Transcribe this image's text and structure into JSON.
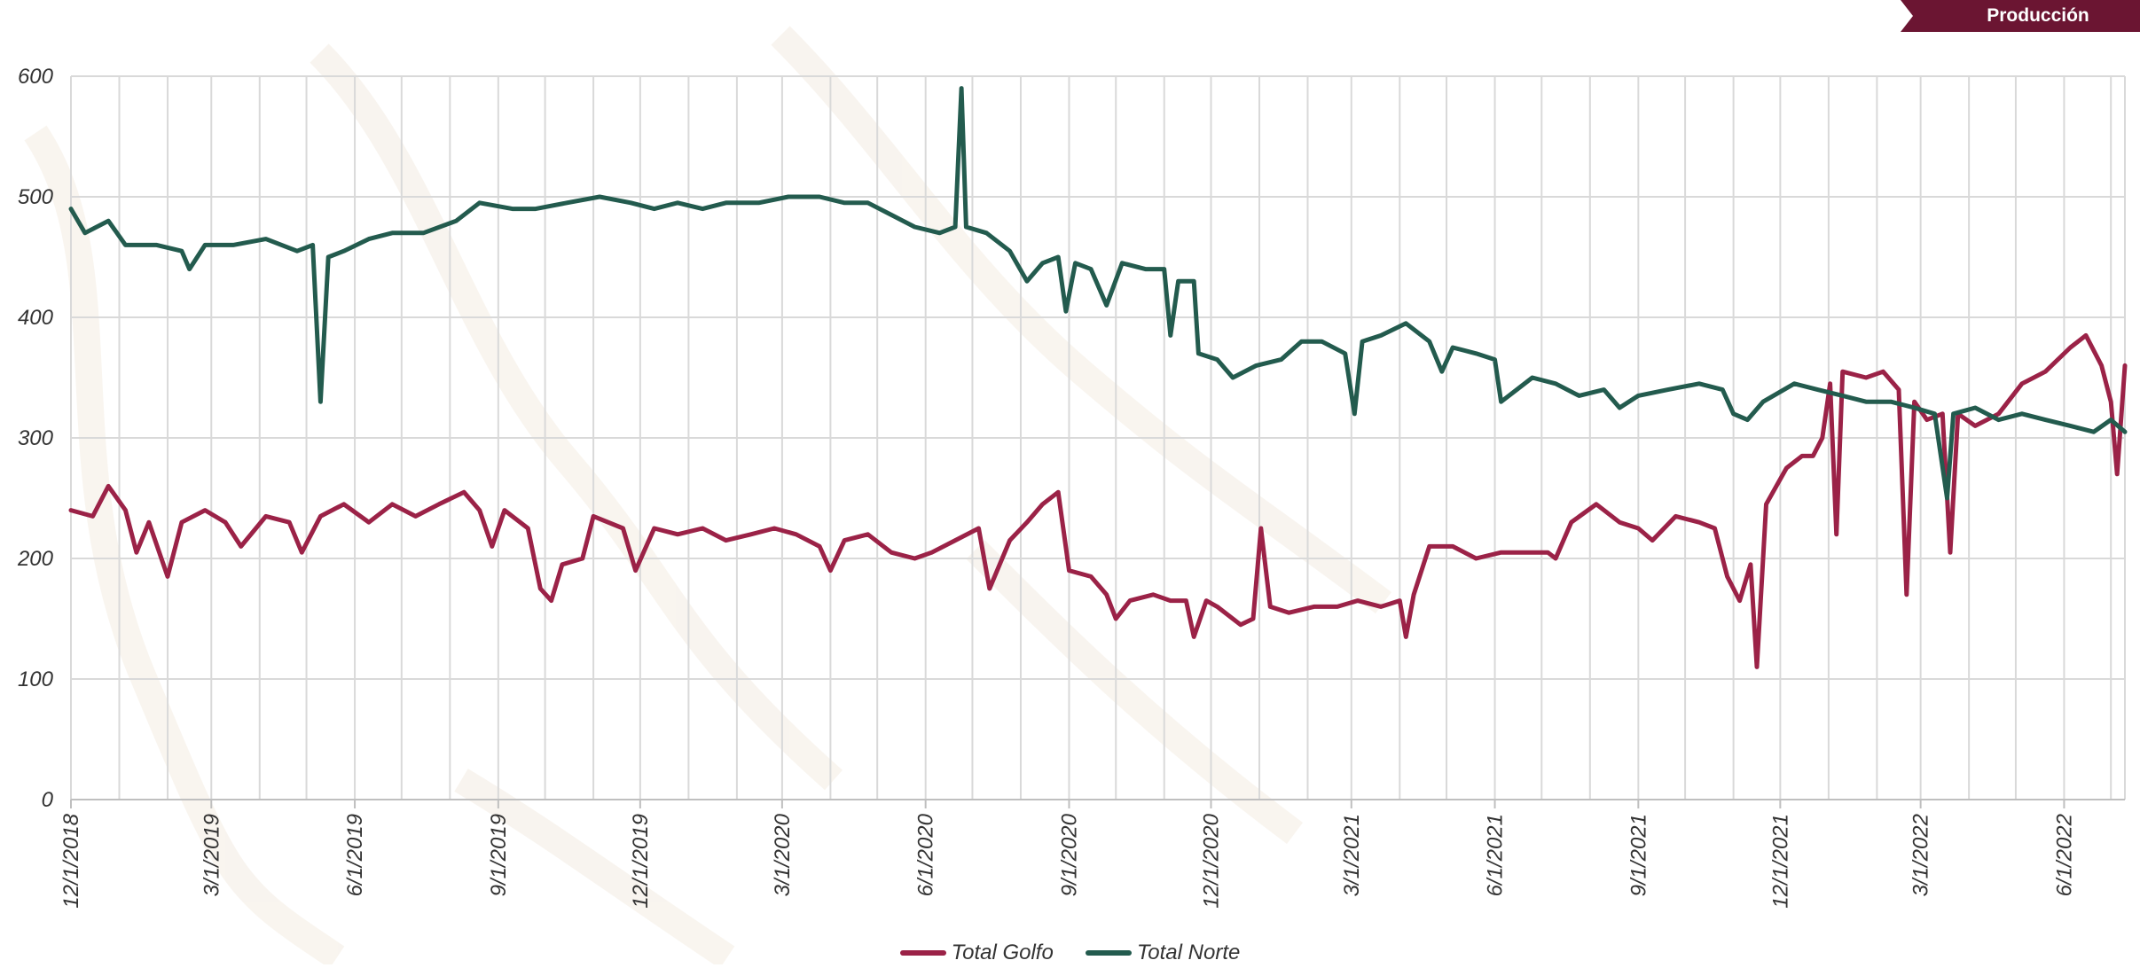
{
  "header": {
    "badge_label": "Producción"
  },
  "chart_data": {
    "type": "line",
    "title": "",
    "xlabel": "",
    "ylabel": "",
    "ylim": [
      0,
      600
    ],
    "y_ticks": [
      0,
      100,
      200,
      300,
      400,
      500,
      600
    ],
    "x_tick_labels": [
      "12/1/2018",
      "3/1/2019",
      "6/1/2019",
      "9/1/2019",
      "12/1/2019",
      "3/1/2020",
      "6/1/2020",
      "9/1/2020",
      "12/1/2020",
      "3/1/2021",
      "6/1/2021",
      "9/1/2021",
      "12/1/2021",
      "3/1/2022",
      "6/1/2022"
    ],
    "x_range": [
      "2018-12-01",
      "2022-07-10"
    ],
    "grid": true,
    "legend_position": "bottom-center",
    "series": [
      {
        "name": "Total Golfo",
        "color": "#9b2247",
        "points": [
          [
            "2018-12-01",
            240
          ],
          [
            "2018-12-15",
            235
          ],
          [
            "2018-12-25",
            260
          ],
          [
            "2019-01-05",
            240
          ],
          [
            "2019-01-12",
            205
          ],
          [
            "2019-01-20",
            230
          ],
          [
            "2019-02-01",
            185
          ],
          [
            "2019-02-10",
            230
          ],
          [
            "2019-02-25",
            240
          ],
          [
            "2019-03-10",
            230
          ],
          [
            "2019-03-20",
            210
          ],
          [
            "2019-04-05",
            235
          ],
          [
            "2019-04-20",
            230
          ],
          [
            "2019-04-28",
            205
          ],
          [
            "2019-05-10",
            235
          ],
          [
            "2019-05-25",
            245
          ],
          [
            "2019-06-10",
            230
          ],
          [
            "2019-06-25",
            245
          ],
          [
            "2019-07-10",
            235
          ],
          [
            "2019-07-25",
            245
          ],
          [
            "2019-08-10",
            255
          ],
          [
            "2019-08-20",
            240
          ],
          [
            "2019-08-28",
            210
          ],
          [
            "2019-09-05",
            240
          ],
          [
            "2019-09-20",
            225
          ],
          [
            "2019-09-28",
            175
          ],
          [
            "2019-10-05",
            165
          ],
          [
            "2019-10-12",
            195
          ],
          [
            "2019-10-25",
            200
          ],
          [
            "2019-11-01",
            235
          ],
          [
            "2019-11-20",
            225
          ],
          [
            "2019-11-28",
            190
          ],
          [
            "2019-12-10",
            225
          ],
          [
            "2019-12-25",
            220
          ],
          [
            "2020-01-10",
            225
          ],
          [
            "2020-01-25",
            215
          ],
          [
            "2020-02-10",
            220
          ],
          [
            "2020-02-25",
            225
          ],
          [
            "2020-03-10",
            220
          ],
          [
            "2020-03-25",
            210
          ],
          [
            "2020-04-01",
            190
          ],
          [
            "2020-04-10",
            215
          ],
          [
            "2020-04-25",
            220
          ],
          [
            "2020-05-10",
            205
          ],
          [
            "2020-05-25",
            200
          ],
          [
            "2020-06-05",
            205
          ],
          [
            "2020-06-20",
            215
          ],
          [
            "2020-07-05",
            225
          ],
          [
            "2020-07-12",
            175
          ],
          [
            "2020-07-25",
            215
          ],
          [
            "2020-08-05",
            230
          ],
          [
            "2020-08-15",
            245
          ],
          [
            "2020-08-25",
            255
          ],
          [
            "2020-09-01",
            190
          ],
          [
            "2020-09-15",
            185
          ],
          [
            "2020-09-25",
            170
          ],
          [
            "2020-10-01",
            150
          ],
          [
            "2020-10-10",
            165
          ],
          [
            "2020-10-25",
            170
          ],
          [
            "2020-11-05",
            165
          ],
          [
            "2020-11-15",
            165
          ],
          [
            "2020-11-20",
            135
          ],
          [
            "2020-11-28",
            165
          ],
          [
            "2020-12-05",
            160
          ],
          [
            "2020-12-15",
            150
          ],
          [
            "2020-12-20",
            145
          ],
          [
            "2020-12-28",
            150
          ],
          [
            "2021-01-02",
            225
          ],
          [
            "2021-01-08",
            160
          ],
          [
            "2021-01-20",
            155
          ],
          [
            "2021-02-05",
            160
          ],
          [
            "2021-02-20",
            160
          ],
          [
            "2021-03-05",
            165
          ],
          [
            "2021-03-20",
            160
          ],
          [
            "2021-04-01",
            165
          ],
          [
            "2021-04-05",
            135
          ],
          [
            "2021-04-10",
            170
          ],
          [
            "2021-04-20",
            210
          ],
          [
            "2021-05-05",
            210
          ],
          [
            "2021-05-20",
            200
          ],
          [
            "2021-06-05",
            205
          ],
          [
            "2021-06-20",
            205
          ],
          [
            "2021-07-05",
            205
          ],
          [
            "2021-07-10",
            200
          ],
          [
            "2021-07-20",
            230
          ],
          [
            "2021-08-05",
            245
          ],
          [
            "2021-08-20",
            230
          ],
          [
            "2021-09-01",
            225
          ],
          [
            "2021-09-10",
            215
          ],
          [
            "2021-09-25",
            235
          ],
          [
            "2021-10-10",
            230
          ],
          [
            "2021-10-20",
            225
          ],
          [
            "2021-10-28",
            185
          ],
          [
            "2021-11-05",
            165
          ],
          [
            "2021-11-12",
            195
          ],
          [
            "2021-11-16",
            110
          ],
          [
            "2021-11-22",
            245
          ],
          [
            "2021-12-05",
            275
          ],
          [
            "2021-12-15",
            285
          ],
          [
            "2021-12-22",
            285
          ],
          [
            "2021-12-28",
            300
          ],
          [
            "2022-01-02",
            345
          ],
          [
            "2022-01-06",
            220
          ],
          [
            "2022-01-10",
            355
          ],
          [
            "2022-01-25",
            350
          ],
          [
            "2022-02-05",
            355
          ],
          [
            "2022-02-15",
            340
          ],
          [
            "2022-02-20",
            170
          ],
          [
            "2022-02-25",
            330
          ],
          [
            "2022-03-05",
            315
          ],
          [
            "2022-03-15",
            320
          ],
          [
            "2022-03-20",
            205
          ],
          [
            "2022-03-25",
            320
          ],
          [
            "2022-04-05",
            310
          ],
          [
            "2022-04-20",
            320
          ],
          [
            "2022-05-05",
            345
          ],
          [
            "2022-05-20",
            355
          ],
          [
            "2022-06-05",
            375
          ],
          [
            "2022-06-15",
            385
          ],
          [
            "2022-06-25",
            360
          ],
          [
            "2022-07-01",
            330
          ],
          [
            "2022-07-05",
            270
          ],
          [
            "2022-07-10",
            360
          ]
        ]
      },
      {
        "name": "Total Norte",
        "color": "#235b4e",
        "points": [
          [
            "2018-12-01",
            490
          ],
          [
            "2018-12-10",
            470
          ],
          [
            "2018-12-25",
            480
          ],
          [
            "2019-01-05",
            460
          ],
          [
            "2019-01-25",
            460
          ],
          [
            "2019-02-10",
            455
          ],
          [
            "2019-02-15",
            440
          ],
          [
            "2019-02-25",
            460
          ],
          [
            "2019-03-15",
            460
          ],
          [
            "2019-04-05",
            465
          ],
          [
            "2019-04-25",
            455
          ],
          [
            "2019-05-05",
            460
          ],
          [
            "2019-05-10",
            330
          ],
          [
            "2019-05-15",
            450
          ],
          [
            "2019-05-25",
            455
          ],
          [
            "2019-06-10",
            465
          ],
          [
            "2019-06-25",
            470
          ],
          [
            "2019-07-15",
            470
          ],
          [
            "2019-08-05",
            480
          ],
          [
            "2019-08-20",
            495
          ],
          [
            "2019-09-10",
            490
          ],
          [
            "2019-09-25",
            490
          ],
          [
            "2019-10-15",
            495
          ],
          [
            "2019-11-05",
            500
          ],
          [
            "2019-11-25",
            495
          ],
          [
            "2019-12-10",
            490
          ],
          [
            "2019-12-25",
            495
          ],
          [
            "2020-01-10",
            490
          ],
          [
            "2020-01-25",
            495
          ],
          [
            "2020-02-15",
            495
          ],
          [
            "2020-03-05",
            500
          ],
          [
            "2020-03-25",
            500
          ],
          [
            "2020-04-10",
            495
          ],
          [
            "2020-04-25",
            495
          ],
          [
            "2020-05-10",
            485
          ],
          [
            "2020-05-25",
            475
          ],
          [
            "2020-06-10",
            470
          ],
          [
            "2020-06-20",
            475
          ],
          [
            "2020-06-24",
            590
          ],
          [
            "2020-06-27",
            475
          ],
          [
            "2020-07-10",
            470
          ],
          [
            "2020-07-25",
            455
          ],
          [
            "2020-08-05",
            430
          ],
          [
            "2020-08-15",
            445
          ],
          [
            "2020-08-25",
            450
          ],
          [
            "2020-08-30",
            405
          ],
          [
            "2020-09-05",
            445
          ],
          [
            "2020-09-15",
            440
          ],
          [
            "2020-09-25",
            410
          ],
          [
            "2020-10-05",
            445
          ],
          [
            "2020-10-20",
            440
          ],
          [
            "2020-11-01",
            440
          ],
          [
            "2020-11-05",
            385
          ],
          [
            "2020-11-10",
            430
          ],
          [
            "2020-11-20",
            430
          ],
          [
            "2020-11-23",
            370
          ],
          [
            "2020-12-05",
            365
          ],
          [
            "2020-12-15",
            350
          ],
          [
            "2020-12-30",
            360
          ],
          [
            "2021-01-15",
            365
          ],
          [
            "2021-01-28",
            380
          ],
          [
            "2021-02-10",
            380
          ],
          [
            "2021-02-25",
            370
          ],
          [
            "2021-03-03",
            320
          ],
          [
            "2021-03-08",
            380
          ],
          [
            "2021-03-20",
            385
          ],
          [
            "2021-04-05",
            395
          ],
          [
            "2021-04-20",
            380
          ],
          [
            "2021-04-28",
            355
          ],
          [
            "2021-05-05",
            375
          ],
          [
            "2021-05-20",
            370
          ],
          [
            "2021-06-01",
            365
          ],
          [
            "2021-06-05",
            330
          ],
          [
            "2021-06-15",
            340
          ],
          [
            "2021-06-25",
            350
          ],
          [
            "2021-07-10",
            345
          ],
          [
            "2021-07-25",
            335
          ],
          [
            "2021-08-10",
            340
          ],
          [
            "2021-08-20",
            325
          ],
          [
            "2021-09-01",
            335
          ],
          [
            "2021-09-20",
            340
          ],
          [
            "2021-10-10",
            345
          ],
          [
            "2021-10-25",
            340
          ],
          [
            "2021-11-01",
            320
          ],
          [
            "2021-11-10",
            315
          ],
          [
            "2021-11-20",
            330
          ],
          [
            "2021-12-10",
            345
          ],
          [
            "2021-12-25",
            340
          ],
          [
            "2022-01-10",
            335
          ],
          [
            "2022-01-25",
            330
          ],
          [
            "2022-02-10",
            330
          ],
          [
            "2022-02-25",
            325
          ],
          [
            "2022-03-10",
            320
          ],
          [
            "2022-03-18",
            250
          ],
          [
            "2022-03-22",
            320
          ],
          [
            "2022-04-05",
            325
          ],
          [
            "2022-04-20",
            315
          ],
          [
            "2022-05-05",
            320
          ],
          [
            "2022-05-20",
            315
          ],
          [
            "2022-06-05",
            310
          ],
          [
            "2022-06-20",
            305
          ],
          [
            "2022-07-01",
            315
          ],
          [
            "2022-07-10",
            305
          ]
        ]
      }
    ]
  }
}
